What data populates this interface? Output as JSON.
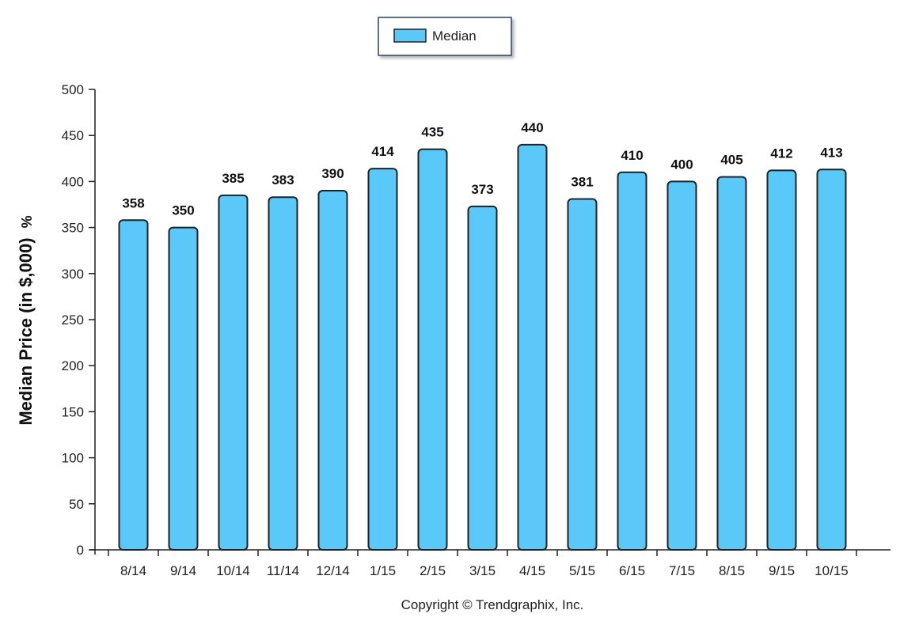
{
  "chart_data": {
    "type": "bar",
    "categories": [
      "8/14",
      "9/14",
      "10/14",
      "11/14",
      "12/14",
      "1/15",
      "2/15",
      "3/15",
      "4/15",
      "5/15",
      "6/15",
      "7/15",
      "8/15",
      "9/15",
      "10/15"
    ],
    "series": [
      {
        "name": "Median",
        "values": [
          358,
          350,
          385,
          383,
          390,
          414,
          435,
          373,
          440,
          381,
          410,
          400,
          405,
          412,
          413
        ]
      }
    ],
    "ylabel": "Median Price (in $,000)",
    "ylabel_unit": "%",
    "xlabel": "",
    "ylim": [
      0,
      500
    ],
    "yticks": [
      0,
      50,
      100,
      150,
      200,
      250,
      300,
      350,
      400,
      450,
      500
    ],
    "legend": {
      "position": "top-center"
    },
    "grid": false,
    "footer": "Copyright © Trendgraphix, Inc.",
    "colors": {
      "bar_fill": "#5bc8fa",
      "bar_stroke": "#222222",
      "legend_border": "#2a3f6e"
    }
  }
}
